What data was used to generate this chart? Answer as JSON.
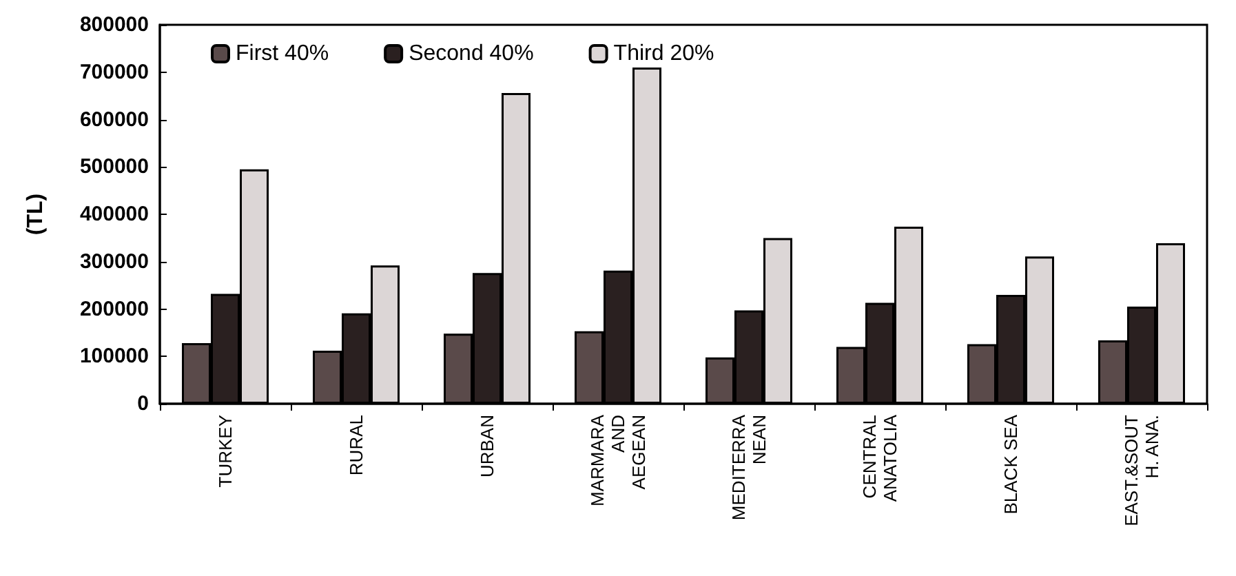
{
  "chart_data": {
    "type": "bar",
    "ylabel": "(TL)",
    "categories": [
      "TURKEY",
      "RURAL",
      "URBAN",
      "MARMARA\nAND\nAEGEAN",
      "MEDITERRA\nNEAN",
      "CENTRAL\nANATOLIA",
      "BLACK SEA",
      "EAST.&SOUT\nH. ANA."
    ],
    "series": [
      {
        "name": "First 40%",
        "color": "#5a4a4a",
        "values": [
          128000,
          112000,
          148000,
          153000,
          98000,
          120000,
          126000,
          134000
        ]
      },
      {
        "name": "Second 40%",
        "color": "#2a2020",
        "values": [
          232000,
          191000,
          276000,
          281000,
          197000,
          213000,
          230000,
          205000
        ]
      },
      {
        "name": "Third 20%",
        "color": "#dcd6d6",
        "values": [
          495000,
          292000,
          656000,
          710000,
          350000,
          374000,
          311000,
          339000
        ]
      }
    ],
    "ylim": [
      0,
      800000
    ],
    "yticks": [
      0,
      100000,
      200000,
      300000,
      400000,
      500000,
      600000,
      700000,
      800000
    ],
    "grid": false,
    "legend": "top left"
  }
}
